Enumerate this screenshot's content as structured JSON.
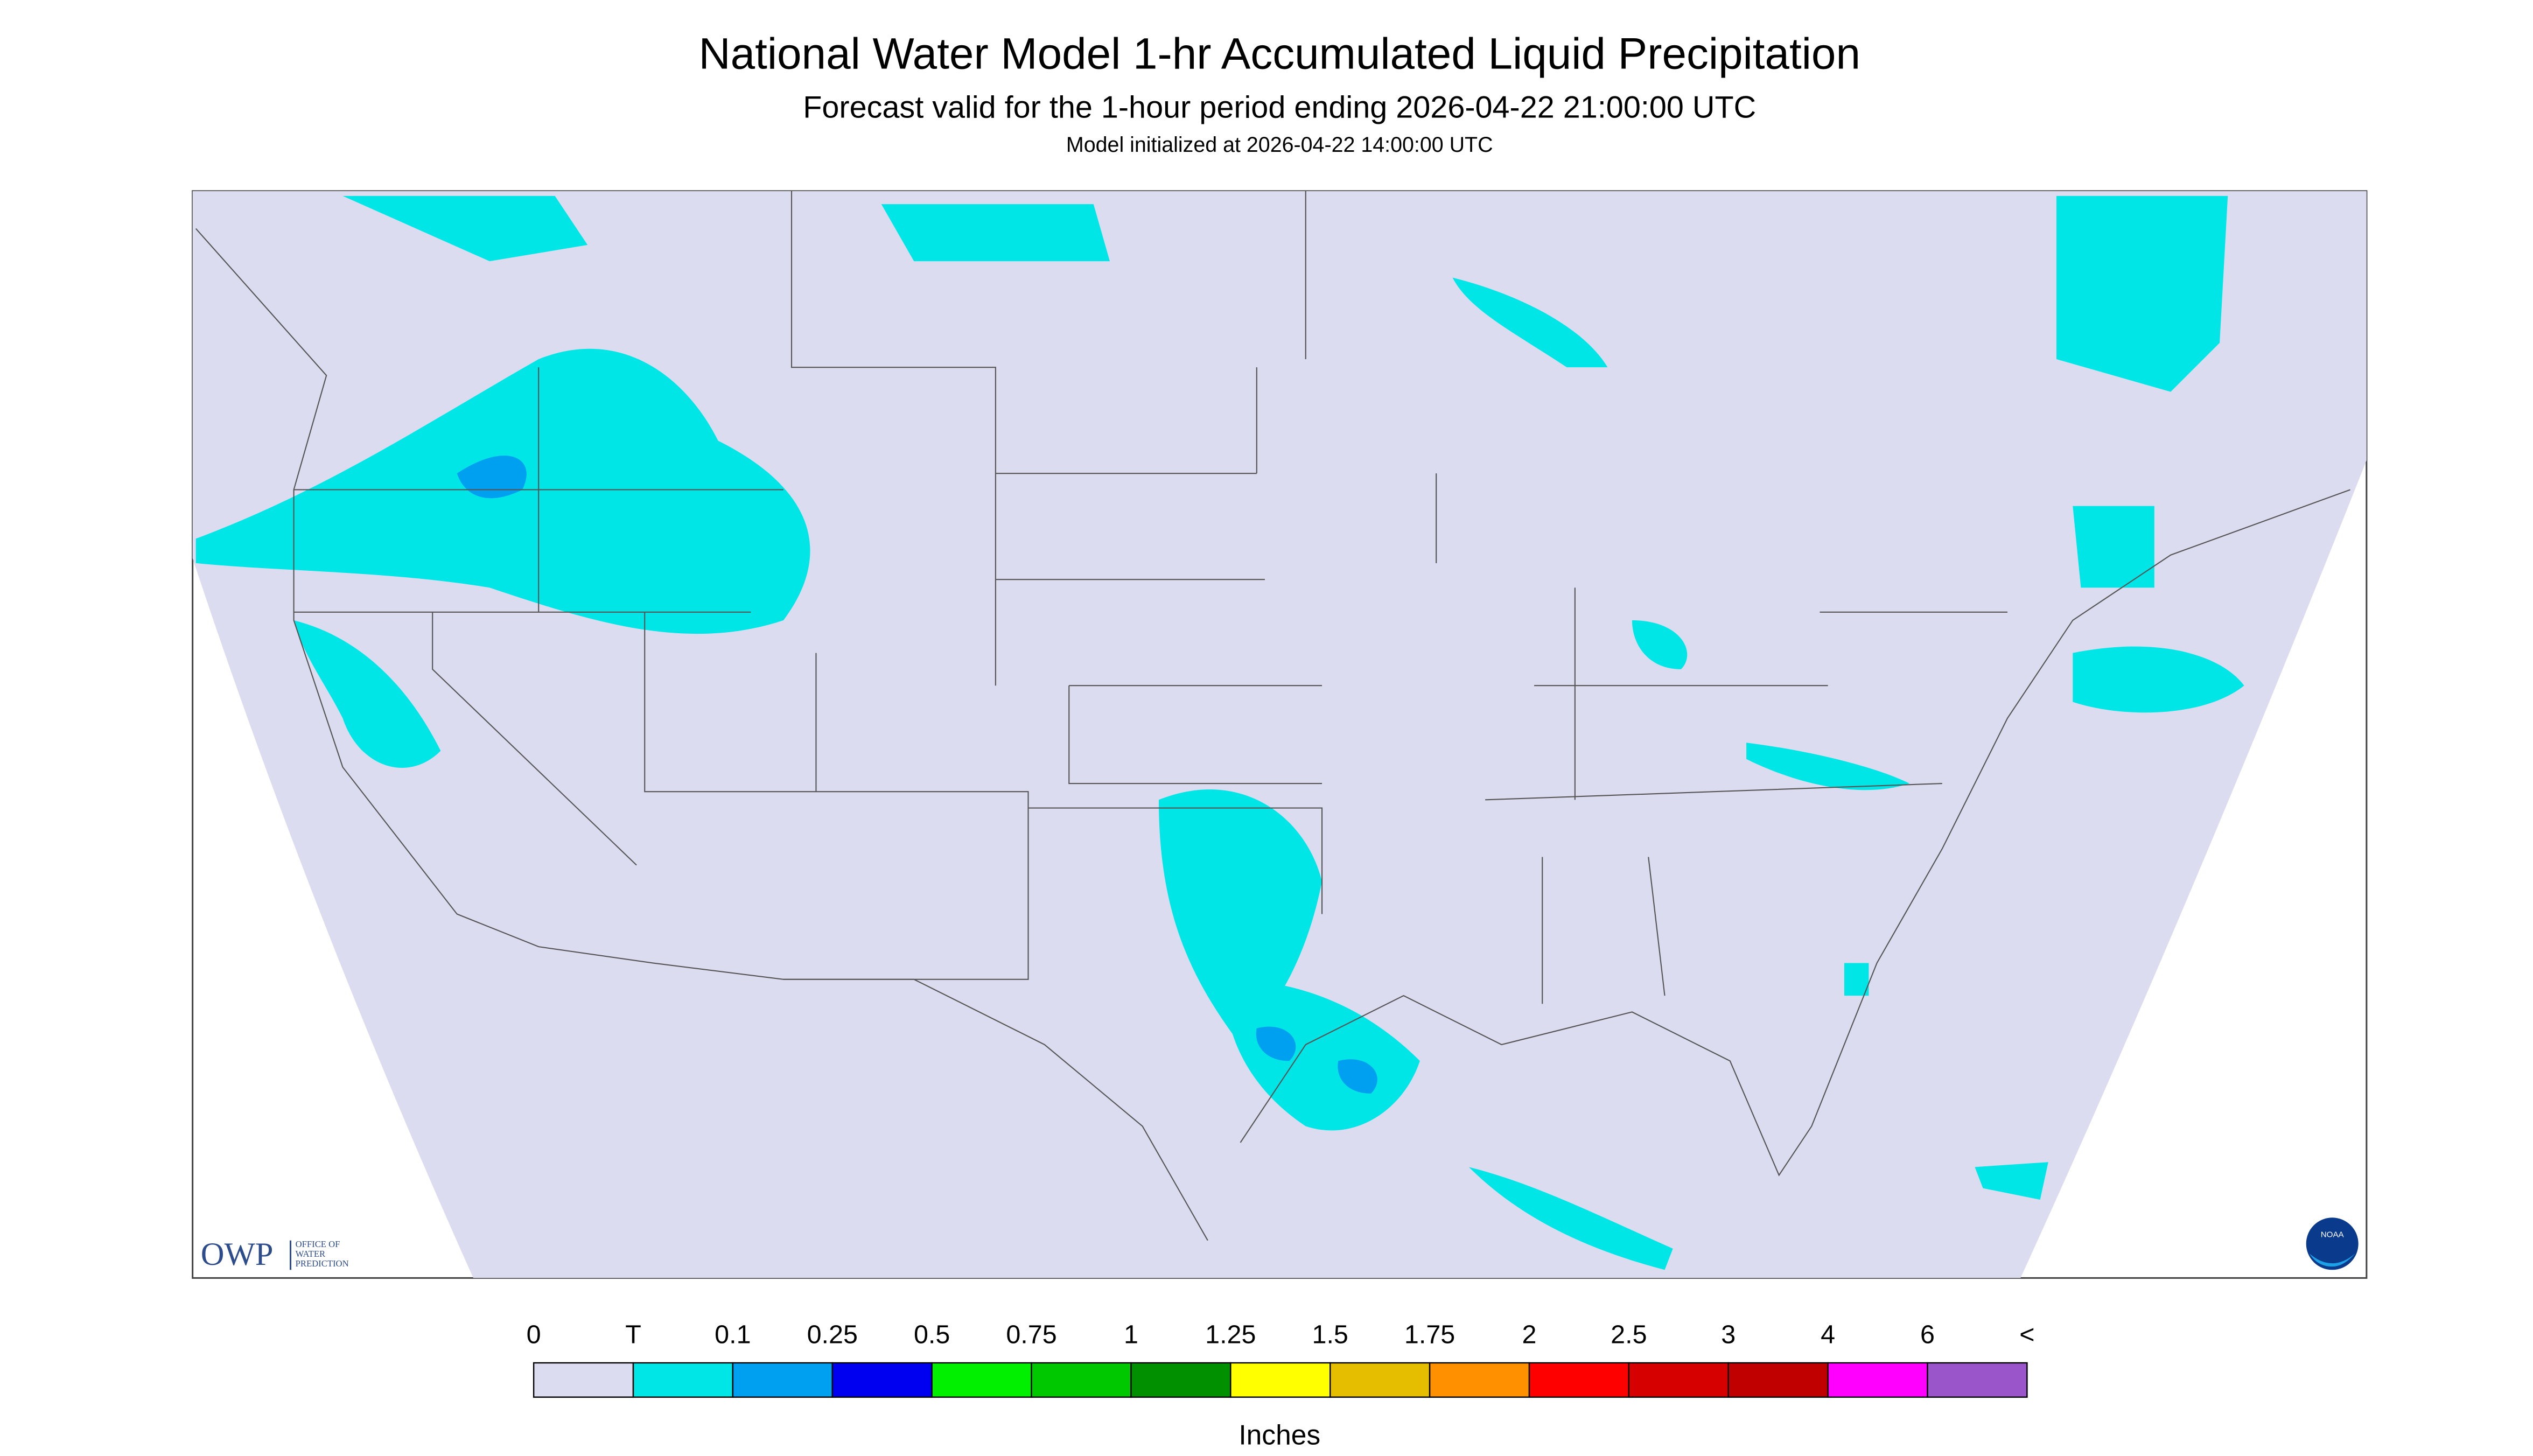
{
  "header": {
    "title": "National Water Model 1-hr Accumulated Liquid Precipitation",
    "subtitle": "Forecast valid for the 1-hour period ending 2026-04-22 21:00:00 UTC",
    "init": "Model initialized at 2026-04-22 14:00:00 UTC"
  },
  "logos": {
    "owp": "OWP",
    "owp_lines": [
      "OFFICE OF",
      "WATER",
      "PREDICTION"
    ],
    "noaa": "NOAA"
  },
  "legend": {
    "labels": [
      "0",
      "T",
      "0.1",
      "0.25",
      "0.5",
      "0.75",
      "1",
      "1.25",
      "1.5",
      "1.75",
      "2",
      "2.5",
      "3",
      "4",
      "6",
      "<"
    ],
    "colors": [
      "#dcdcf0",
      "#00e6e6",
      "#00a0f0",
      "#0000f0",
      "#00f000",
      "#00c800",
      "#009000",
      "#ffff00",
      "#e6be00",
      "#ff9000",
      "#ff0000",
      "#d60000",
      "#c00000",
      "#ff00ff",
      "#9955c9"
    ],
    "unit": "Inches"
  }
}
